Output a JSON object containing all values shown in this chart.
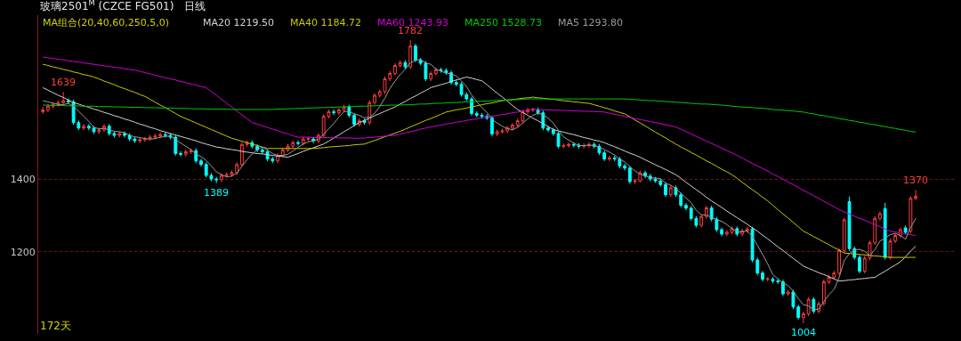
{
  "chart_data": {
    "type": "candlestick",
    "title": "玻璃2501$^{M}$ (CZCE FG501)   日线",
    "subtitle": "MA组合(20,40,60,250,5,0)",
    "categories": [
      null,
      null,
      null,
      null,
      null,
      null,
      null,
      null,
      null,
      null,
      null,
      null,
      null,
      null,
      null,
      null,
      null,
      null,
      null,
      null,
      null,
      null,
      null,
      null,
      null,
      null,
      null,
      null,
      null,
      null,
      null,
      null,
      null,
      null,
      null,
      null,
      null,
      null,
      null,
      null,
      null,
      null,
      null,
      null,
      null,
      null,
      null,
      null,
      null,
      null,
      null,
      null,
      null,
      null,
      null,
      null,
      null,
      null,
      null,
      null,
      null,
      null,
      null,
      null,
      null,
      null,
      null,
      null,
      null,
      null,
      null,
      null,
      null,
      null,
      null,
      null,
      null,
      null,
      null,
      null,
      null,
      null,
      null,
      null,
      null,
      null,
      null,
      null,
      null,
      null,
      null,
      null,
      null,
      null,
      null,
      null,
      null,
      null,
      null,
      null,
      null,
      null,
      null,
      null,
      null,
      null,
      null,
      null,
      null,
      null,
      null,
      null,
      null,
      null,
      null,
      null,
      null,
      null,
      null,
      null,
      null,
      null,
      null,
      null,
      null,
      null,
      null,
      null,
      null,
      null,
      null,
      null,
      null,
      null,
      null,
      null,
      null,
      null,
      null,
      null,
      null,
      null,
      null,
      null,
      null,
      null,
      null,
      null,
      null,
      null,
      null,
      null,
      null,
      null,
      null,
      null,
      null,
      null,
      null,
      null,
      null,
      null,
      null,
      null,
      null,
      null,
      null,
      null,
      null,
      null,
      null,
      null
    ],
    "ylim": [
      975,
      1850
    ],
    "yticks": [
      1400,
      1200
    ],
    "grid": "y",
    "tick_labels": "y",
    "annotations": [
      {
        "text": "1639",
        "y": 1639
      },
      {
        "text": "1389",
        "y": 1389
      },
      {
        "text": "1782",
        "y": 1782
      },
      {
        "text": "1004",
        "y": 1004
      },
      {
        "text": "1370",
        "y": 1370
      },
      "172天"
    ],
    "series": [
      {
        "type": "candlestick",
        "colors": [
          "#ff3c3c",
          "#ff3c3c",
          "#ff3c3c",
          "#ff3c3c",
          "#ff3c3c",
          "#00ffff",
          "#00ffff",
          "#00ffff",
          "#ff3c3c",
          "#00ffff",
          "#00ffff",
          "#ff3c3c",
          "#ff3c3c",
          "#00ffff",
          "#00ffff",
          "#ff3c3c",
          "#00ffff",
          "#00ffff",
          "#00ffff",
          "#ff3c3c",
          "#ff3c3c",
          "#ff3c3c",
          "#ff3c3c",
          "#ff3c3c",
          "#00ffff",
          "#00ffff",
          "#00ffff",
          "#00ffff",
          "#ff3c3c",
          "#ff3c3c",
          "#00ffff",
          "#00ffff",
          "#00ffff",
          "#00ffff",
          "#00ffff",
          "#ff3c3c",
          "#ff3c3c",
          "#ff3c3c",
          "#ff3c3c",
          "#ff3c3c",
          "#ff3c3c",
          "#00ffff",
          "#00ffff",
          "#00ffff",
          "#00ffff",
          "#00ffff",
          "#ff3c3c",
          "#ff3c3c",
          "#ff3c3c",
          "#ff3c3c",
          "#00ffff",
          "#ff3c3c",
          "#ff3c3c",
          "#00ffff",
          "#ff3c3c",
          "#ff3c3c",
          "#ff3c3c",
          "#00ffff",
          "#ff3c3c",
          "#ff3c3c",
          "#00ffff",
          "#00ffff",
          "#ff3c3c",
          "#00ffff",
          "#ff3c3c",
          "#ff3c3c",
          "#ff3c3c",
          "#ff3c3c",
          "#ff3c3c",
          "#ff3c3c",
          "#ff3c3c",
          "#00ffff",
          "#ff3c3c",
          "#00ffff",
          "#00ffff",
          "#00ffff",
          "#ff3c3c",
          "#ff3c3c",
          "#00ffff",
          "#00ffff",
          "#00ffff",
          "#00ffff",
          "#00ffff",
          "#00ffff",
          "#00ffff",
          "#00ffff",
          "#00ffff",
          "#00ffff",
          "#00ffff",
          "#ff3c3c",
          "#ff3c3c",
          "#ff3c3c",
          "#ff3c3c",
          "#ff3c3c",
          "#ff3c3c",
          "#ff3c3c",
          "#ff3c3c",
          "#00ffff",
          "#00ffff",
          "#00ffff",
          "#00ffff",
          "#00ffff",
          "#ff3c3c",
          "#ff3c3c",
          "#00ffff",
          "#00ffff",
          "#ff3c3c",
          "#ff3c3c",
          "#00ffff",
          "#00ffff",
          "#00ffff",
          "#ff3c3c",
          "#00ffff",
          "#00ffff",
          "#00ffff",
          "#00ffff",
          "#ff3c3c",
          "#ff3c3c",
          "#00ffff",
          "#00ffff",
          "#00ffff",
          "#00ffff",
          "#00ffff",
          "#ff3c3c",
          "#00ffff",
          "#00ffff",
          "#00ffff",
          "#00ffff",
          "#00ffff",
          "#ff3c3c",
          "#ff3c3c",
          "#00ffff",
          "#00ffff",
          "#00ffff",
          "#ff3c3c",
          "#ff3c3c",
          "#00ffff",
          "#ff3c3c",
          "#ff3c3c",
          "#00ffff",
          "#00ffff",
          "#00ffff",
          "#ff3c3c",
          "#00ffff",
          "#00ffff",
          "#00ffff",
          "#ff3c3c",
          "#00ffff",
          "#00ffff",
          "#ff3c3c",
          "#ff3c3c",
          "#00ffff",
          "#ff3c3c",
          "#ff3c3c",
          "#ff3c3c",
          "#ff3c3c",
          "#ff3c3c",
          "#ff3c3c",
          "#00ffff",
          "#00ffff",
          "#00ffff",
          "#ff3c3c",
          "#ff3c3c",
          "#ff3c3c",
          "#ff3c3c",
          "#00ffff",
          "#ff3c3c",
          "#ff3c3c",
          "#ff3c3c",
          "#00ffff",
          "#ff3c3c",
          "#ff3c3c"
        ],
        "ohlc": [
          [
            1585,
            1598,
            1579,
            1590
          ],
          [
            1590,
            1606,
            1584,
            1600
          ],
          [
            1600,
            1611,
            1594,
            1605
          ],
          [
            1605,
            1616,
            1599,
            1610
          ],
          [
            1610,
            1639,
            1604,
            1615
          ],
          [
            1615,
            1621,
            1606,
            1612
          ],
          [
            1612,
            1618,
            1549,
            1555
          ],
          [
            1555,
            1561,
            1534,
            1540
          ],
          [
            1540,
            1551,
            1534,
            1545
          ],
          [
            1545,
            1551,
            1534,
            1540
          ],
          [
            1540,
            1546,
            1524,
            1530
          ],
          [
            1530,
            1541,
            1524,
            1535
          ],
          [
            1535,
            1551,
            1529,
            1545
          ],
          [
            1545,
            1551,
            1519,
            1525
          ],
          [
            1525,
            1531,
            1514,
            1520
          ],
          [
            1520,
            1531,
            1514,
            1525
          ],
          [
            1525,
            1531,
            1514,
            1520
          ],
          [
            1520,
            1526,
            1504,
            1510
          ],
          [
            1510,
            1516,
            1499,
            1505
          ],
          [
            1505,
            1514,
            1499,
            1508
          ],
          [
            1508,
            1516,
            1502,
            1510
          ],
          [
            1510,
            1521,
            1504,
            1515
          ],
          [
            1515,
            1524,
            1509,
            1518
          ],
          [
            1518,
            1528,
            1512,
            1522
          ],
          [
            1522,
            1528,
            1514,
            1520
          ],
          [
            1520,
            1526,
            1509,
            1515
          ],
          [
            1515,
            1521,
            1464,
            1470
          ],
          [
            1470,
            1476,
            1462,
            1468
          ],
          [
            1468,
            1481,
            1462,
            1475
          ],
          [
            1475,
            1484,
            1469,
            1478
          ],
          [
            1478,
            1484,
            1444,
            1450
          ],
          [
            1450,
            1456,
            1434,
            1440
          ],
          [
            1440,
            1446,
            1404,
            1410
          ],
          [
            1410,
            1416,
            1394,
            1400
          ],
          [
            1400,
            1406,
            1389,
            1398
          ],
          [
            1398,
            1416,
            1392,
            1410
          ],
          [
            1410,
            1418,
            1404,
            1412
          ],
          [
            1412,
            1424,
            1406,
            1418
          ],
          [
            1418,
            1446,
            1412,
            1440
          ],
          [
            1440,
            1501,
            1434,
            1495
          ],
          [
            1495,
            1506,
            1489,
            1500
          ],
          [
            1500,
            1506,
            1484,
            1490
          ],
          [
            1490,
            1496,
            1474,
            1480
          ],
          [
            1480,
            1486,
            1469,
            1475
          ],
          [
            1475,
            1481,
            1449,
            1455
          ],
          [
            1455,
            1461,
            1444,
            1450
          ],
          [
            1450,
            1471,
            1444,
            1465
          ],
          [
            1465,
            1486,
            1459,
            1480
          ],
          [
            1480,
            1496,
            1474,
            1490
          ],
          [
            1490,
            1506,
            1484,
            1500
          ],
          [
            1500,
            1506,
            1492,
            1498
          ],
          [
            1498,
            1516,
            1492,
            1510
          ],
          [
            1510,
            1516,
            1504,
            1511
          ],
          [
            1510,
            1516,
            1499,
            1505
          ],
          [
            1505,
            1526,
            1499,
            1520
          ],
          [
            1520,
            1578,
            1514,
            1572
          ],
          [
            1572,
            1591,
            1566,
            1585
          ],
          [
            1585,
            1591,
            1576,
            1582
          ],
          [
            1582,
            1596,
            1576,
            1590
          ],
          [
            1590,
            1604,
            1584,
            1598
          ],
          [
            1598,
            1604,
            1569,
            1575
          ],
          [
            1575,
            1581,
            1544,
            1550
          ],
          [
            1550,
            1566,
            1544,
            1560
          ],
          [
            1560,
            1566,
            1549,
            1555
          ],
          [
            1555,
            1616,
            1549,
            1610
          ],
          [
            1610,
            1636,
            1604,
            1630
          ],
          [
            1630,
            1646,
            1624,
            1640
          ],
          [
            1640,
            1681,
            1634,
            1675
          ],
          [
            1675,
            1696,
            1669,
            1690
          ],
          [
            1690,
            1718,
            1684,
            1712
          ],
          [
            1712,
            1726,
            1706,
            1720
          ],
          [
            1720,
            1726,
            1702,
            1708
          ],
          [
            1708,
            1782,
            1702,
            1765
          ],
          [
            1765,
            1771,
            1721,
            1727
          ],
          [
            1727,
            1733,
            1712,
            1718
          ],
          [
            1718,
            1724,
            1669,
            1675
          ],
          [
            1675,
            1696,
            1669,
            1690
          ],
          [
            1690,
            1706,
            1684,
            1700
          ],
          [
            1700,
            1706,
            1692,
            1698
          ],
          [
            1698,
            1704,
            1686,
            1692
          ],
          [
            1692,
            1698,
            1659,
            1665
          ],
          [
            1665,
            1671,
            1654,
            1660
          ],
          [
            1660,
            1666,
            1626,
            1632
          ],
          [
            1632,
            1638,
            1614,
            1620
          ],
          [
            1620,
            1626,
            1574,
            1580
          ],
          [
            1580,
            1586,
            1569,
            1575
          ],
          [
            1575,
            1581,
            1566,
            1572
          ],
          [
            1572,
            1578,
            1562,
            1568
          ],
          [
            1568,
            1574,
            1518,
            1524
          ],
          [
            1524,
            1536,
            1518,
            1530
          ],
          [
            1530,
            1538,
            1524,
            1532
          ],
          [
            1532,
            1546,
            1526,
            1540
          ],
          [
            1540,
            1554,
            1534,
            1548
          ],
          [
            1548,
            1566,
            1542,
            1560
          ],
          [
            1560,
            1591,
            1554,
            1585
          ],
          [
            1585,
            1596,
            1579,
            1590
          ],
          [
            1590,
            1596,
            1584,
            1591
          ],
          [
            1590,
            1596,
            1576,
            1582
          ],
          [
            1582,
            1588,
            1534,
            1540
          ],
          [
            1540,
            1546,
            1529,
            1535
          ],
          [
            1535,
            1541,
            1519,
            1525
          ],
          [
            1525,
            1531,
            1484,
            1490
          ],
          [
            1490,
            1498,
            1484,
            1492
          ],
          [
            1492,
            1501,
            1486,
            1495
          ],
          [
            1495,
            1501,
            1487,
            1493
          ],
          [
            1493,
            1499,
            1484,
            1490
          ],
          [
            1490,
            1498,
            1484,
            1492
          ],
          [
            1492,
            1501,
            1486,
            1495
          ],
          [
            1495,
            1501,
            1484,
            1490
          ],
          [
            1490,
            1496,
            1466,
            1472
          ],
          [
            1472,
            1478,
            1449,
            1455
          ],
          [
            1455,
            1464,
            1449,
            1458
          ],
          [
            1458,
            1464,
            1449,
            1455
          ],
          [
            1455,
            1461,
            1430,
            1436
          ],
          [
            1436,
            1442,
            1424,
            1430
          ],
          [
            1430,
            1436,
            1387,
            1393
          ],
          [
            1393,
            1401,
            1387,
            1395
          ],
          [
            1395,
            1423,
            1390,
            1417
          ],
          [
            1417,
            1423,
            1402,
            1408
          ],
          [
            1408,
            1414,
            1394,
            1400
          ],
          [
            1400,
            1406,
            1390,
            1395
          ],
          [
            1395,
            1401,
            1379,
            1385
          ],
          [
            1385,
            1391,
            1351,
            1357
          ],
          [
            1357,
            1382,
            1351,
            1376
          ],
          [
            1376,
            1382,
            1351,
            1357
          ],
          [
            1357,
            1363,
            1322,
            1328
          ],
          [
            1328,
            1334,
            1314,
            1320
          ],
          [
            1320,
            1326,
            1286,
            1292
          ],
          [
            1292,
            1298,
            1267,
            1273
          ],
          [
            1273,
            1303,
            1267,
            1297
          ],
          [
            1297,
            1327,
            1291,
            1321
          ],
          [
            1321,
            1327,
            1284,
            1290
          ],
          [
            1290,
            1296,
            1255,
            1261
          ],
          [
            1261,
            1267,
            1243,
            1249
          ],
          [
            1249,
            1260,
            1243,
            1254
          ],
          [
            1254,
            1270,
            1248,
            1264
          ],
          [
            1264,
            1270,
            1243,
            1249
          ],
          [
            1249,
            1264,
            1243,
            1258
          ],
          [
            1258,
            1269,
            1252,
            1263
          ],
          [
            1263,
            1269,
            1172,
            1178
          ],
          [
            1178,
            1184,
            1136,
            1142
          ],
          [
            1142,
            1148,
            1119,
            1125
          ],
          [
            1125,
            1131,
            1119,
            1126
          ],
          [
            1125,
            1131,
            1114,
            1120
          ],
          [
            1120,
            1126,
            1112,
            1118
          ],
          [
            1118,
            1124,
            1079,
            1085
          ],
          [
            1085,
            1096,
            1079,
            1090
          ],
          [
            1090,
            1096,
            1043,
            1049
          ],
          [
            1049,
            1055,
            1014,
            1020
          ],
          [
            1020,
            1036,
            1004,
            1030
          ],
          [
            1030,
            1076,
            1024,
            1070
          ],
          [
            1070,
            1076,
            1031,
            1037
          ],
          [
            1037,
            1064,
            1031,
            1058
          ],
          [
            1058,
            1124,
            1052,
            1118
          ],
          [
            1118,
            1136,
            1112,
            1130
          ],
          [
            1130,
            1148,
            1124,
            1142
          ],
          [
            1142,
            1210,
            1136,
            1204
          ],
          [
            1204,
            1294,
            1198,
            1288
          ],
          [
            1338,
            1352,
            1203,
            1209
          ],
          [
            1209,
            1215,
            1179,
            1185
          ],
          [
            1185,
            1191,
            1141,
            1147
          ],
          [
            1147,
            1189,
            1141,
            1183
          ],
          [
            1183,
            1231,
            1177,
            1225
          ],
          [
            1225,
            1298,
            1219,
            1292
          ],
          [
            1292,
            1311,
            1286,
            1305
          ],
          [
            1319,
            1335,
            1179,
            1185
          ],
          [
            1185,
            1236,
            1179,
            1230
          ],
          [
            1230,
            1251,
            1224,
            1245
          ],
          [
            1245,
            1267,
            1239,
            1261
          ],
          [
            1266,
            1272,
            1248,
            1254
          ],
          [
            1257,
            1353,
            1251,
            1347
          ],
          [
            1347,
            1370,
            1342,
            1353
          ]
        ]
      },
      {
        "type": "line",
        "name": "MA20 1219.50",
        "color": "#d2d2d2",
        "values": [
          1651,
          1644,
          1637,
          1630,
          1624,
          1617,
          1610,
          1606,
          1601,
          1597,
          1592,
          1588,
          1583,
          1579,
          1574,
          1570,
          1565,
          1561,
          1556,
          1551,
          1547,
          1542,
          1538,
          1533,
          1529,
          1525,
          1521,
          1517,
          1513,
          1509,
          1505,
          1500,
          1496,
          1492,
          1488,
          1486,
          1483,
          1481,
          1479,
          1476,
          1474,
          1472,
          1470,
          1469,
          1467,
          1465,
          1463,
          1462,
          1460,
          1465,
          1470,
          1476,
          1481,
          1486,
          1491,
          1496,
          1504,
          1513,
          1521,
          1530,
          1538,
          1547,
          1555,
          1561,
          1567,
          1574,
          1580,
          1586,
          1592,
          1598,
          1606,
          1613,
          1621,
          1628,
          1636,
          1643,
          1651,
          1655,
          1659,
          1663,
          1668,
          1672,
          1676,
          1680,
          1677,
          1673,
          1670,
          1659,
          1647,
          1636,
          1625,
          1614,
          1602,
          1591,
          1583,
          1575,
          1567,
          1560,
          1552,
          1544,
          1536,
          1532,
          1529,
          1525,
          1522,
          1518,
          1514,
          1511,
          1507,
          1504,
          1500,
          1494,
          1489,
          1483,
          1477,
          1471,
          1466,
          1460,
          1453,
          1446,
          1439,
          1433,
          1426,
          1419,
          1412,
          1402,
          1391,
          1381,
          1371,
          1361,
          1350,
          1340,
          1331,
          1322,
          1312,
          1303,
          1294,
          1285,
          1276,
          1266,
          1257,
          1246,
          1236,
          1225,
          1214,
          1204,
          1193,
          1182,
          1172,
          1161,
          1155,
          1149,
          1143,
          1138,
          1132,
          1126,
          1120,
          1121,
          1123,
          1124,
          1126,
          1127,
          1129,
          1130,
          1139,
          1147,
          1156,
          1164,
          1173,
          1187,
          1202,
          1216
        ]
      },
      {
        "type": "line",
        "name": "MA40 1184.72",
        "color": "#c8c800",
        "values": [
          1715,
          1712,
          1708,
          1705,
          1701,
          1698,
          1694,
          1691,
          1687,
          1684,
          1680,
          1675,
          1669,
          1664,
          1659,
          1653,
          1648,
          1643,
          1638,
          1632,
          1627,
          1619,
          1611,
          1603,
          1596,
          1588,
          1580,
          1572,
          1566,
          1560,
          1554,
          1548,
          1542,
          1536,
          1530,
          1524,
          1518,
          1512,
          1508,
          1504,
          1500,
          1496,
          1492,
          1488,
          1484,
          1484,
          1484,
          1484,
          1484,
          1484,
          1484,
          1484,
          1484,
          1484,
          1485,
          1486,
          1488,
          1489,
          1490,
          1491,
          1492,
          1494,
          1495,
          1496,
          1501,
          1506,
          1511,
          1516,
          1521,
          1526,
          1531,
          1537,
          1543,
          1549,
          1555,
          1561,
          1566,
          1572,
          1578,
          1584,
          1587,
          1590,
          1592,
          1595,
          1598,
          1601,
          1604,
          1607,
          1609,
          1612,
          1615,
          1617,
          1618,
          1620,
          1622,
          1623,
          1625,
          1623,
          1622,
          1620,
          1619,
          1617,
          1615,
          1614,
          1612,
          1611,
          1609,
          1608,
          1604,
          1600,
          1596,
          1592,
          1587,
          1583,
          1579,
          1571,
          1562,
          1554,
          1546,
          1537,
          1529,
          1521,
          1513,
          1504,
          1496,
          1488,
          1481,
          1473,
          1466,
          1458,
          1450,
          1443,
          1435,
          1427,
          1420,
          1412,
          1402,
          1391,
          1381,
          1371,
          1361,
          1350,
          1340,
          1328,
          1316,
          1304,
          1293,
          1281,
          1269,
          1257,
          1250,
          1242,
          1235,
          1227,
          1220,
          1212,
          1205,
          1197,
          1196,
          1194,
          1193,
          1192,
          1190,
          1189,
          1188,
          1186,
          1185,
          1185,
          1185,
          1185,
          1185,
          1185
        ]
      },
      {
        "type": "line",
        "name": "MA60 1243.93",
        "color": "#d200d2",
        "values": [
          1735,
          1733,
          1731,
          1729,
          1727,
          1725,
          1723,
          1721,
          1719,
          1717,
          1715,
          1713,
          1711,
          1709,
          1707,
          1705,
          1703,
          1701,
          1699,
          1696,
          1692,
          1689,
          1685,
          1682,
          1678,
          1675,
          1672,
          1668,
          1665,
          1661,
          1658,
          1654,
          1651,
          1640,
          1630,
          1619,
          1608,
          1598,
          1587,
          1576,
          1566,
          1555,
          1551,
          1546,
          1542,
          1537,
          1533,
          1528,
          1524,
          1519,
          1515,
          1515,
          1515,
          1514,
          1514,
          1514,
          1514,
          1513,
          1513,
          1513,
          1513,
          1512,
          1512,
          1513,
          1514,
          1515,
          1516,
          1518,
          1519,
          1520,
          1523,
          1527,
          1530,
          1533,
          1537,
          1540,
          1543,
          1546,
          1548,
          1551,
          1553,
          1556,
          1558,
          1561,
          1563,
          1565,
          1568,
          1570,
          1572,
          1575,
          1577,
          1579,
          1582,
          1584,
          1586,
          1589,
          1591,
          1591,
          1590,
          1590,
          1589,
          1589,
          1588,
          1588,
          1587,
          1587,
          1586,
          1586,
          1585,
          1585,
          1584,
          1581,
          1578,
          1575,
          1572,
          1569,
          1566,
          1563,
          1561,
          1558,
          1555,
          1552,
          1549,
          1546,
          1543,
          1537,
          1530,
          1524,
          1517,
          1511,
          1504,
          1498,
          1491,
          1485,
          1478,
          1472,
          1465,
          1458,
          1450,
          1443,
          1436,
          1429,
          1422,
          1414,
          1407,
          1400,
          1392,
          1385,
          1377,
          1369,
          1362,
          1354,
          1347,
          1339,
          1331,
          1324,
          1316,
          1310,
          1304,
          1298,
          1292,
          1287,
          1281,
          1275,
          1269,
          1263,
          1257,
          1255,
          1252,
          1250,
          1247,
          1245
        ]
      },
      {
        "type": "line",
        "name": "MA250 1528.73",
        "color": "#00c800",
        "values": [
          1603,
          1603,
          1602,
          1602,
          1602,
          1601,
          1601,
          1601,
          1600,
          1600,
          1600,
          1599,
          1599,
          1599,
          1598,
          1598,
          1598,
          1597,
          1597,
          1597,
          1596,
          1596,
          1596,
          1595,
          1595,
          1595,
          1594,
          1594,
          1594,
          1593,
          1593,
          1593,
          1592,
          1592,
          1592,
          1592,
          1592,
          1591,
          1591,
          1591,
          1591,
          1591,
          1591,
          1591,
          1591,
          1591,
          1592,
          1592,
          1593,
          1593,
          1594,
          1594,
          1595,
          1595,
          1596,
          1596,
          1597,
          1597,
          1598,
          1598,
          1599,
          1599,
          1600,
          1600,
          1601,
          1601,
          1602,
          1602,
          1603,
          1603,
          1603,
          1604,
          1604,
          1605,
          1606,
          1606,
          1607,
          1608,
          1608,
          1609,
          1610,
          1610,
          1611,
          1612,
          1612,
          1613,
          1614,
          1614,
          1615,
          1616,
          1616,
          1617,
          1618,
          1618,
          1619,
          1620,
          1620,
          1620,
          1620,
          1620,
          1620,
          1620,
          1620,
          1620,
          1620,
          1620,
          1620,
          1620,
          1620,
          1620,
          1620,
          1620,
          1620,
          1620,
          1620,
          1619,
          1618,
          1617,
          1616,
          1615,
          1615,
          1614,
          1613,
          1612,
          1611,
          1610,
          1609,
          1608,
          1607,
          1606,
          1606,
          1605,
          1604,
          1603,
          1602,
          1600,
          1599,
          1598,
          1597,
          1596,
          1595,
          1594,
          1593,
          1591,
          1590,
          1589,
          1588,
          1587,
          1585,
          1584,
          1581,
          1579,
          1576,
          1574,
          1571,
          1569,
          1566,
          1564,
          1561,
          1559,
          1556,
          1554,
          1551,
          1549,
          1546,
          1544,
          1541,
          1539,
          1536,
          1534,
          1531,
          1529
        ]
      },
      {
        "type": "line",
        "name": "MA5 1293.80",
        "color": "#9a9a9a",
        "values": [
          1615,
          1612,
          1608,
          1605,
          1604,
          1608,
          1599,
          1586,
          1573,
          1558,
          1542,
          1538,
          1539,
          1535,
          1531,
          1530,
          1527,
          1520,
          1516,
          1514,
          1511,
          1510,
          1511,
          1515,
          1517,
          1518,
          1509,
          1499,
          1490,
          1481,
          1468,
          1462,
          1451,
          1436,
          1420,
          1412,
          1406,
          1408,
          1416,
          1435,
          1453,
          1469,
          1481,
          1488,
          1480,
          1470,
          1465,
          1465,
          1468,
          1477,
          1487,
          1496,
          1502,
          1505,
          1509,
          1523,
          1538,
          1553,
          1570,
          1585,
          1586,
          1579,
          1575,
          1568,
          1570,
          1581,
          1599,
          1622,
          1649,
          1669,
          1687,
          1701,
          1719,
          1726,
          1728,
          1719,
          1715,
          1702,
          1696,
          1691,
          1689,
          1683,
          1669,
          1654,
          1631,
          1613,
          1596,
          1583,
          1564,
          1554,
          1545,
          1539,
          1535,
          1542,
          1553,
          1565,
          1575,
          1581,
          1577,
          1567,
          1554,
          1534,
          1516,
          1507,
          1499,
          1492,
          1492,
          1493,
          1492,
          1488,
          1481,
          1474,
          1466,
          1455,
          1447,
          1434,
          1422,
          1414,
          1409,
          1403,
          1403,
          1401,
          1389,
          1383,
          1374,
          1361,
          1348,
          1335,
          1314,
          1302,
          1301,
          1295,
          1288,
          1284,
          1275,
          1264,
          1255,
          1255,
          1258,
          1242,
          1218,
          1193,
          1167,
          1138,
          1126,
          1115,
          1108,
          1092,
          1072,
          1055,
          1052,
          1041,
          1043,
          1063,
          1083,
          1097,
          1130,
          1176,
          1195,
          1206,
          1207,
          1202,
          1190,
          1206,
          1230,
          1238,
          1247,
          1251,
          1245,
          1235,
          1267,
          1292
        ]
      }
    ]
  }
}
